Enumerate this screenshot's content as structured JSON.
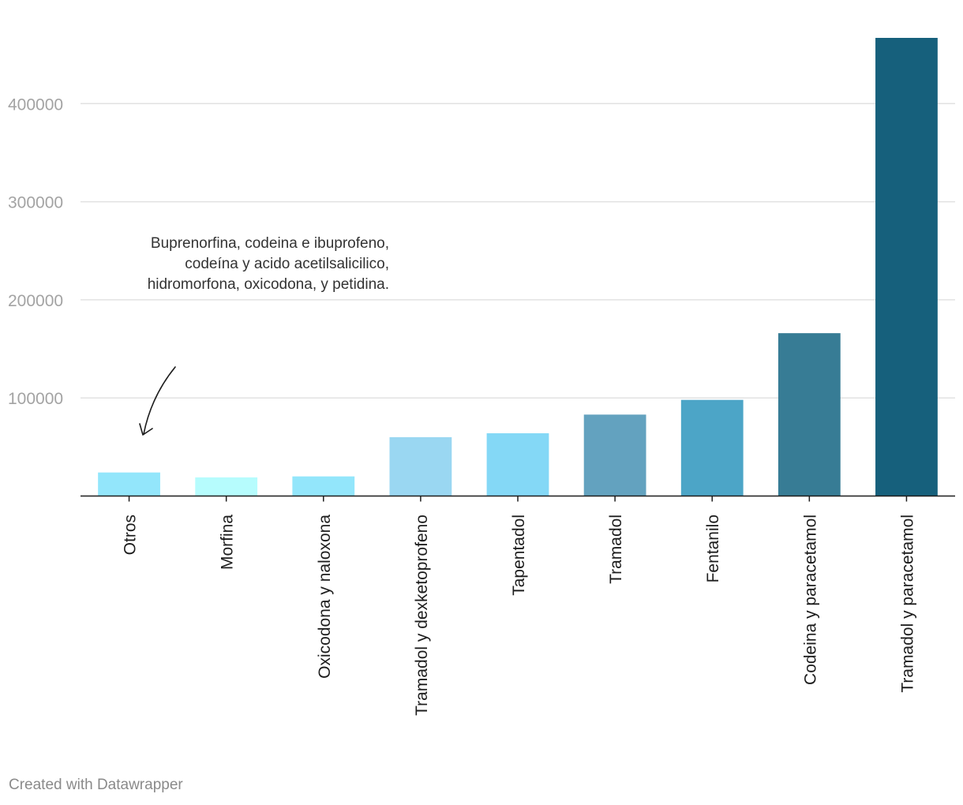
{
  "chart_data": {
    "type": "bar",
    "title": "",
    "xlabel": "",
    "ylabel": "",
    "categories": [
      "Otros",
      "Morfina",
      "Oxicodona y naloxona",
      "Tramadol y dexketoprofeno",
      "Tapentadol",
      "Tramadol",
      "Fentanilo",
      "Codeina y paracetamol",
      "Tramadol y paracetamol"
    ],
    "values": [
      24000,
      19000,
      20000,
      60000,
      64000,
      83000,
      98000,
      166000,
      467000
    ],
    "colors": [
      "#93e6fb",
      "#b6fcfd",
      "#93e6fb",
      "#9ad7f2",
      "#84d8f6",
      "#63a2bf",
      "#4ca5c7",
      "#377c95",
      "#16607c"
    ],
    "ylim": [
      0,
      467000
    ],
    "yticks": [
      100000,
      200000,
      300000,
      400000
    ],
    "ytick_labels": [
      "100000",
      "200000",
      "300000",
      "400000"
    ],
    "grid": true,
    "annotation": "Buprenorfina, codeina e ibuprofeno, codeína y acido acetilsalicilico, hidromorfona, oxicodona, y petidina."
  },
  "footer": {
    "credit": "Created with Datawrapper"
  }
}
